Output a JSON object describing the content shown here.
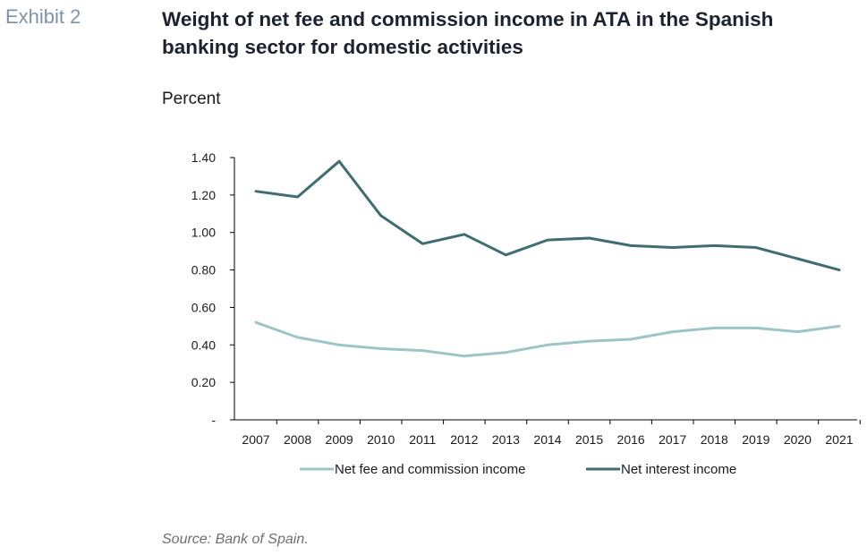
{
  "exhibit_label": "Exhibit 2",
  "colors": {
    "fee": "#9dc4c6",
    "interest": "#3f6d70",
    "axis": "#000000"
  },
  "chart_data": {
    "type": "line",
    "title": "Weight of net fee and commission income in ATA in the Spanish banking sector for domestic activities",
    "ylabel": "Percent",
    "xlabel": "",
    "categories": [
      "2007",
      "2008",
      "2009",
      "2010",
      "2011",
      "2012",
      "2013",
      "2014",
      "2015",
      "2016",
      "2017",
      "2018",
      "2019",
      "2020",
      "2021"
    ],
    "ylim": [
      0,
      1.4
    ],
    "y_ticks": [
      0,
      0.2,
      0.4,
      0.6,
      0.8,
      1.0,
      1.2,
      1.4
    ],
    "y_tick_labels": [
      "-",
      "0.20",
      "0.40",
      "0.60",
      "0.80",
      "1.00",
      "1.20",
      "1.40"
    ],
    "grid": false,
    "legend_position": "bottom",
    "series": [
      {
        "name": "Net fee and commission income",
        "color_key": "fee",
        "values": [
          0.52,
          0.44,
          0.4,
          0.38,
          0.37,
          0.34,
          0.36,
          0.4,
          0.42,
          0.43,
          0.47,
          0.49,
          0.49,
          0.47,
          0.5
        ]
      },
      {
        "name": "Net interest income",
        "color_key": "interest",
        "values": [
          1.22,
          1.19,
          1.38,
          1.09,
          0.94,
          0.99,
          0.88,
          0.96,
          0.97,
          0.93,
          0.92,
          0.93,
          0.92,
          0.86,
          0.8
        ]
      }
    ]
  },
  "source": "Source: Bank of Spain."
}
